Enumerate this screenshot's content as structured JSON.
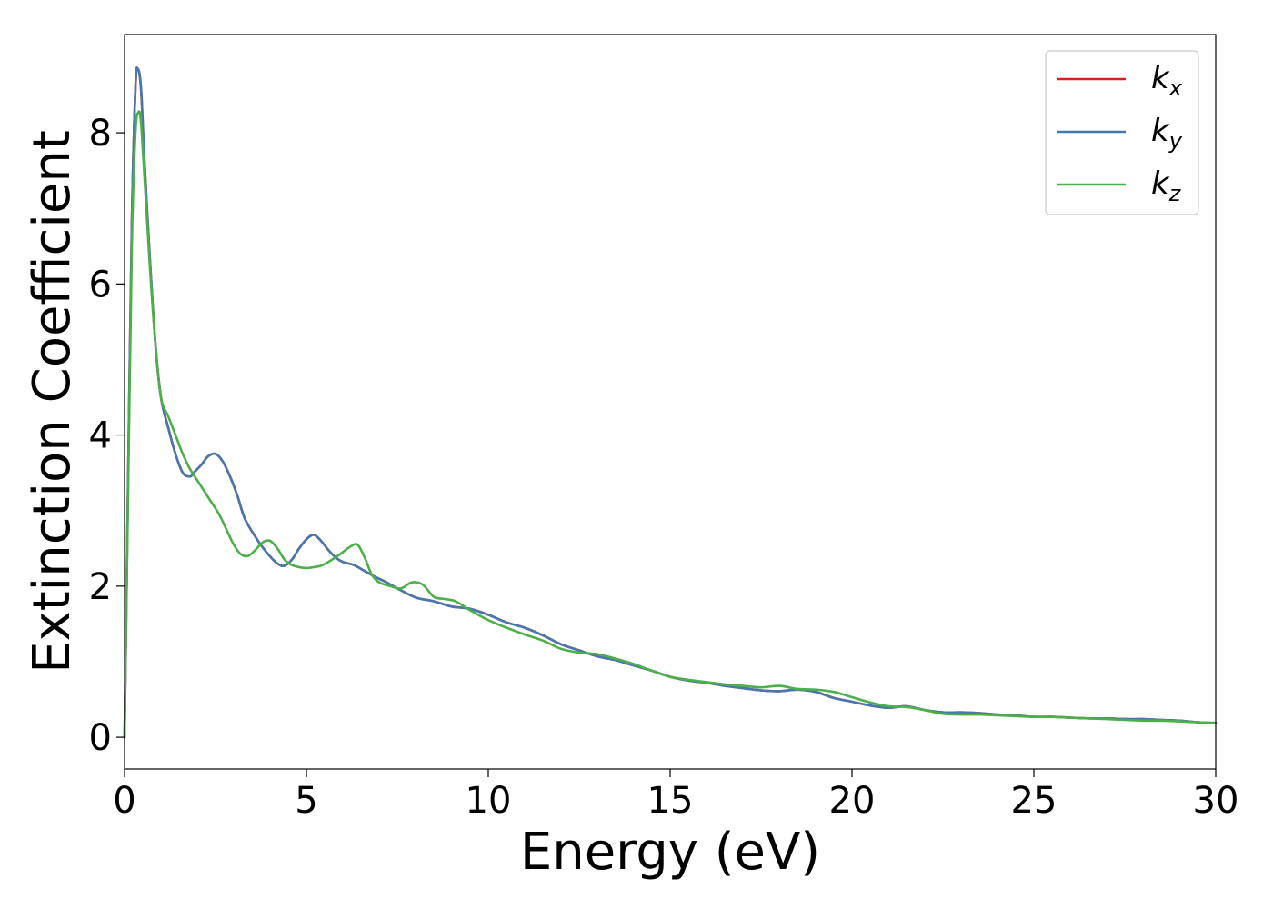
{
  "chart_data": {
    "type": "line",
    "xlabel": "Energy (eV)",
    "ylabel": "Extinction Coefficient",
    "xlim": [
      0,
      30
    ],
    "ylim": [
      -0.42,
      9.3
    ],
    "xticks": [
      0,
      5,
      10,
      15,
      20,
      25,
      30
    ],
    "yticks": [
      0,
      2,
      4,
      6,
      8
    ],
    "grid": false,
    "legend_position": "top-right",
    "series": [
      {
        "name": "k_x",
        "label_main": "k",
        "label_sub": "x",
        "color": "#e41a1c",
        "x": [
          0,
          0.1,
          0.2,
          0.3,
          0.36,
          0.45,
          0.55,
          0.7,
          0.85,
          1.0,
          1.2,
          1.4,
          1.6,
          1.8,
          1.9,
          2.1,
          2.3,
          2.5,
          2.7,
          2.9,
          3.1,
          3.3,
          3.6,
          3.9,
          4.2,
          4.4,
          4.6,
          4.8,
          5.0,
          5.2,
          5.4,
          5.6,
          5.8,
          6.0,
          6.3,
          6.6,
          6.9,
          7.2,
          7.5,
          8.0,
          8.5,
          9.0,
          9.5,
          10.0,
          10.5,
          11.0,
          11.5,
          12.0,
          12.5,
          13.0,
          13.5,
          14.0,
          14.5,
          15.0,
          15.5,
          16.0,
          16.5,
          17.0,
          17.5,
          18.0,
          18.5,
          19.0,
          19.5,
          20.0,
          20.5,
          21.0,
          21.5,
          22.0,
          22.5,
          23.0,
          23.5,
          24.0,
          24.5,
          25.0,
          25.5,
          26.0,
          26.5,
          27.0,
          27.5,
          28.0,
          28.5,
          29.0,
          29.5,
          30.0
        ],
        "y": [
          0,
          3.5,
          6.8,
          8.6,
          8.85,
          8.6,
          7.6,
          6.3,
          5.2,
          4.5,
          4.1,
          3.75,
          3.5,
          3.45,
          3.5,
          3.6,
          3.72,
          3.75,
          3.65,
          3.45,
          3.2,
          2.9,
          2.65,
          2.45,
          2.3,
          2.27,
          2.35,
          2.5,
          2.62,
          2.68,
          2.6,
          2.48,
          2.38,
          2.32,
          2.28,
          2.2,
          2.12,
          2.05,
          1.97,
          1.85,
          1.8,
          1.73,
          1.7,
          1.62,
          1.52,
          1.45,
          1.35,
          1.23,
          1.15,
          1.07,
          1.02,
          0.95,
          0.88,
          0.8,
          0.75,
          0.72,
          0.68,
          0.65,
          0.62,
          0.61,
          0.63,
          0.6,
          0.52,
          0.47,
          0.42,
          0.39,
          0.41,
          0.36,
          0.33,
          0.33,
          0.32,
          0.3,
          0.29,
          0.27,
          0.27,
          0.26,
          0.25,
          0.25,
          0.24,
          0.24,
          0.23,
          0.22,
          0.2,
          0.19
        ]
      },
      {
        "name": "k_y",
        "label_main": "k",
        "label_sub": "y",
        "color": "#4678b0",
        "x": [
          0,
          0.1,
          0.2,
          0.3,
          0.36,
          0.45,
          0.55,
          0.7,
          0.85,
          1.0,
          1.2,
          1.4,
          1.6,
          1.8,
          1.9,
          2.1,
          2.3,
          2.5,
          2.7,
          2.9,
          3.1,
          3.3,
          3.6,
          3.9,
          4.2,
          4.4,
          4.6,
          4.8,
          5.0,
          5.2,
          5.4,
          5.6,
          5.8,
          6.0,
          6.3,
          6.6,
          6.9,
          7.2,
          7.5,
          8.0,
          8.5,
          9.0,
          9.5,
          10.0,
          10.5,
          11.0,
          11.5,
          12.0,
          12.5,
          13.0,
          13.5,
          14.0,
          14.5,
          15.0,
          15.5,
          16.0,
          16.5,
          17.0,
          17.5,
          18.0,
          18.5,
          19.0,
          19.5,
          20.0,
          20.5,
          21.0,
          21.5,
          22.0,
          22.5,
          23.0,
          23.5,
          24.0,
          24.5,
          25.0,
          25.5,
          26.0,
          26.5,
          27.0,
          27.5,
          28.0,
          28.5,
          29.0,
          29.5,
          30.0
        ],
        "y": [
          0,
          3.5,
          6.8,
          8.6,
          8.85,
          8.6,
          7.6,
          6.3,
          5.2,
          4.5,
          4.1,
          3.75,
          3.5,
          3.45,
          3.5,
          3.6,
          3.72,
          3.75,
          3.65,
          3.45,
          3.2,
          2.9,
          2.65,
          2.45,
          2.3,
          2.27,
          2.35,
          2.5,
          2.62,
          2.68,
          2.6,
          2.48,
          2.38,
          2.32,
          2.28,
          2.2,
          2.12,
          2.05,
          1.97,
          1.85,
          1.8,
          1.73,
          1.7,
          1.62,
          1.52,
          1.45,
          1.35,
          1.23,
          1.15,
          1.07,
          1.02,
          0.95,
          0.88,
          0.8,
          0.75,
          0.72,
          0.68,
          0.65,
          0.62,
          0.61,
          0.63,
          0.6,
          0.52,
          0.47,
          0.42,
          0.39,
          0.41,
          0.36,
          0.33,
          0.33,
          0.32,
          0.3,
          0.29,
          0.27,
          0.27,
          0.26,
          0.25,
          0.25,
          0.24,
          0.24,
          0.23,
          0.22,
          0.2,
          0.19
        ]
      },
      {
        "name": "k_z",
        "label_main": "k",
        "label_sub": "z",
        "color": "#4daf4a",
        "x": [
          0,
          0.1,
          0.2,
          0.3,
          0.38,
          0.45,
          0.55,
          0.7,
          0.85,
          1.0,
          1.2,
          1.4,
          1.6,
          1.8,
          2.0,
          2.2,
          2.4,
          2.6,
          2.8,
          3.0,
          3.2,
          3.4,
          3.6,
          3.8,
          4.0,
          4.2,
          4.4,
          4.6,
          4.8,
          5.0,
          5.2,
          5.4,
          5.6,
          5.8,
          6.0,
          6.2,
          6.4,
          6.6,
          6.8,
          7.0,
          7.3,
          7.6,
          7.9,
          8.2,
          8.5,
          8.8,
          9.1,
          9.5,
          10.0,
          10.5,
          11.0,
          11.5,
          12.0,
          12.5,
          13.0,
          13.5,
          14.0,
          14.5,
          15.0,
          15.5,
          16.0,
          16.5,
          17.0,
          17.5,
          18.0,
          18.5,
          19.0,
          19.5,
          20.0,
          20.5,
          21.0,
          21.5,
          22.0,
          22.5,
          23.0,
          23.5,
          24.0,
          24.5,
          25.0,
          25.5,
          26.0,
          26.5,
          27.0,
          27.5,
          28.0,
          28.5,
          29.0,
          29.5,
          30.0
        ],
        "y": [
          0,
          3.3,
          6.5,
          8.0,
          8.27,
          8.15,
          7.4,
          6.2,
          5.2,
          4.5,
          4.25,
          4.0,
          3.75,
          3.55,
          3.4,
          3.25,
          3.1,
          2.95,
          2.75,
          2.55,
          2.42,
          2.4,
          2.48,
          2.58,
          2.6,
          2.5,
          2.35,
          2.28,
          2.25,
          2.24,
          2.25,
          2.27,
          2.32,
          2.38,
          2.45,
          2.52,
          2.55,
          2.38,
          2.15,
          2.05,
          2.0,
          1.97,
          2.05,
          2.02,
          1.86,
          1.83,
          1.8,
          1.68,
          1.55,
          1.45,
          1.36,
          1.28,
          1.17,
          1.12,
          1.1,
          1.04,
          0.97,
          0.88,
          0.8,
          0.76,
          0.73,
          0.7,
          0.68,
          0.66,
          0.68,
          0.64,
          0.63,
          0.6,
          0.53,
          0.46,
          0.41,
          0.4,
          0.36,
          0.31,
          0.3,
          0.3,
          0.29,
          0.28,
          0.27,
          0.27,
          0.26,
          0.25,
          0.24,
          0.23,
          0.22,
          0.22,
          0.21,
          0.2,
          0.19
        ]
      }
    ]
  }
}
